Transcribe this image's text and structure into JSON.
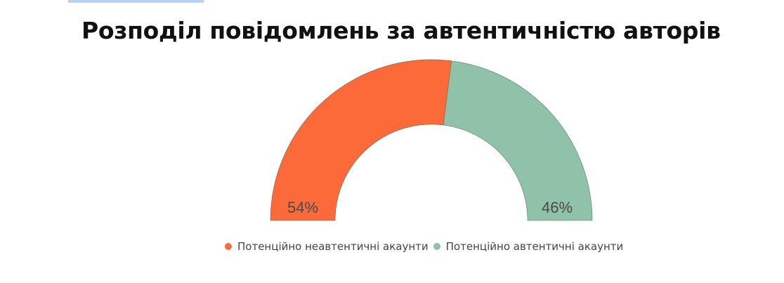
{
  "header": {
    "title": "Розподіл повідомлень за автентичністю авторів"
  },
  "chart_data": {
    "type": "pie",
    "subtype": "half-donut gauge",
    "title": "Розподіл повідомлень за автентичністю авторів",
    "categories": [
      "Потенційно неавтентичні акаунти",
      "Потенційно автентичні акаунти"
    ],
    "values": [
      54,
      46
    ],
    "labels": [
      "54%",
      "46%"
    ],
    "colors": [
      "#fd6a39",
      "#8fc2a8"
    ],
    "legend_position": "bottom"
  },
  "legend": [
    {
      "label": "Потенційно неавтентичні акаунти",
      "color": "#fd6a39"
    },
    {
      "label": "Потенційно автентичні акаунти",
      "color": "#8fc2a8"
    }
  ]
}
